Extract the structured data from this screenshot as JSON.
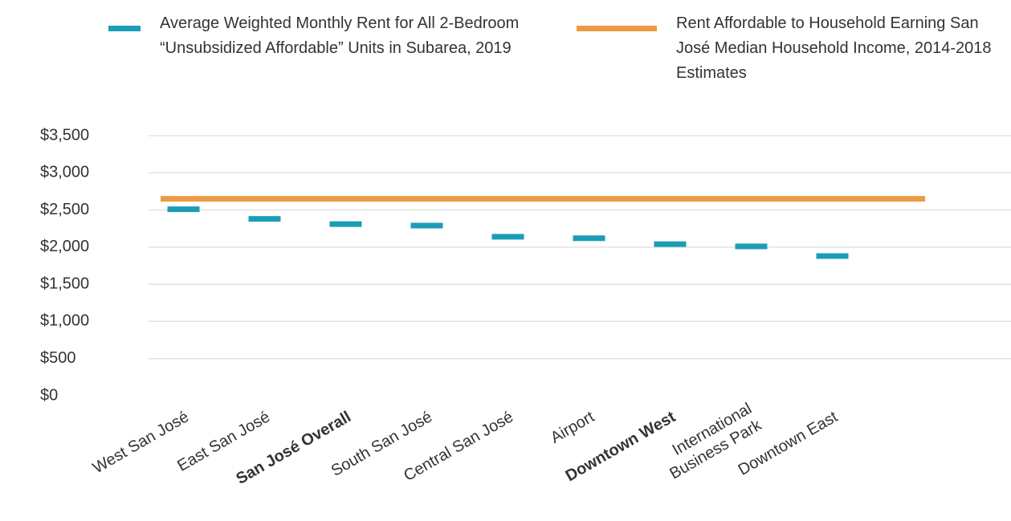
{
  "chart_data": {
    "type": "dash",
    "categories": [
      "West San José",
      "East San José",
      "San José Overall",
      "South San José",
      "Central San José",
      "Airport",
      "Downtown West",
      "International Business Park",
      "Downtown East"
    ],
    "bold_categories": [
      2,
      6
    ],
    "series": [
      {
        "name": "Average Weighted Monthly Rent for All 2-Bedroom “Unsubsidized Affordable” Units in Subarea, 2019",
        "color": "#1b9db5",
        "values": [
          2510,
          2380,
          2310,
          2290,
          2140,
          2120,
          2040,
          2010,
          1880
        ]
      }
    ],
    "reference_line": {
      "name": "Rent Affordable to Household Earning San José Median Household Income, 2014-2018 Estimates",
      "color": "#ec9a45",
      "value": 2650
    },
    "ylim": [
      0,
      3500
    ],
    "yticks": [
      {
        "value": 0,
        "label": "$0"
      },
      {
        "value": 500,
        "label": "$500"
      },
      {
        "value": 1000,
        "label": "$1,000"
      },
      {
        "value": 1500,
        "label": "$1,500"
      },
      {
        "value": 2000,
        "label": "$2,000"
      },
      {
        "value": 2500,
        "label": "$2,500"
      },
      {
        "value": 3000,
        "label": "$3,000"
      },
      {
        "value": 3500,
        "label": "$3,500"
      }
    ],
    "grid": true
  }
}
